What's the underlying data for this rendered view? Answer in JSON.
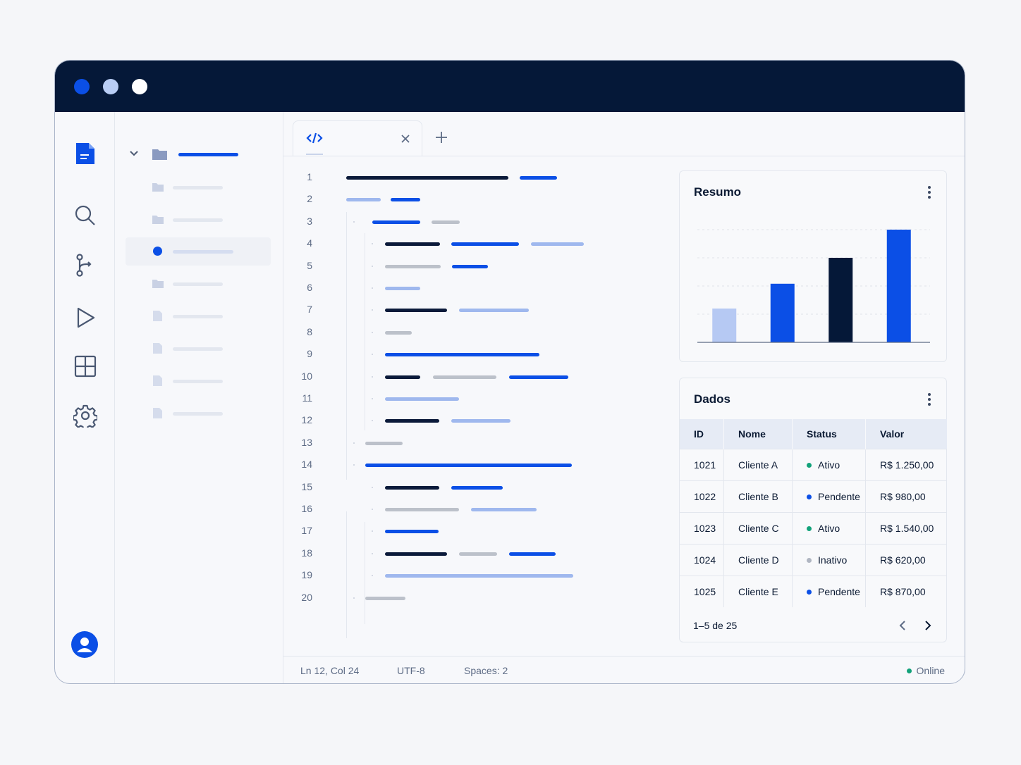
{
  "window": {
    "traffic_lights": [
      "#0b4fe6",
      "#b9cdf5",
      "#ffffff"
    ]
  },
  "activity_bar": {
    "items": [
      "file-icon",
      "search-icon",
      "git-branch-icon",
      "run-icon",
      "extensions-icon",
      "gear-icon"
    ],
    "account": "user-avatar-icon"
  },
  "editor": {
    "tab_icon": "code-icon",
    "line_numbers": [
      "1",
      "2",
      "3",
      "4",
      "5",
      "6",
      "7",
      "8",
      "9",
      "10",
      "11",
      "12",
      "13",
      "14",
      "15",
      "16",
      "17",
      "18",
      "19",
      "20"
    ]
  },
  "summary_card": {
    "title": "Resumo",
    "chart_data": {
      "type": "bar",
      "categories": [
        "",
        "",
        "",
        ""
      ],
      "values": [
        30,
        52,
        75,
        100
      ],
      "colors": [
        "#b6c9f3",
        "#0b4fe6",
        "#051838",
        "#0b4fe6"
      ],
      "ylim": [
        0,
        100
      ],
      "grid": true
    }
  },
  "data_card": {
    "title": "Dados",
    "columns": [
      "ID",
      "Nome",
      "Status",
      "Valor"
    ],
    "rows": [
      {
        "id": "1021",
        "nome": "Cliente A",
        "status": "Ativo",
        "status_color": "#12a27a",
        "valor": "R$ 1.250,00"
      },
      {
        "id": "1022",
        "nome": "Cliente B",
        "status": "Pendente",
        "status_color": "#0b4fe6",
        "valor": "R$ 980,00"
      },
      {
        "id": "1023",
        "nome": "Cliente C",
        "status": "Ativo",
        "status_color": "#12a27a",
        "valor": "R$ 1.540,00"
      },
      {
        "id": "1024",
        "nome": "Cliente D",
        "status": "Inativo",
        "status_color": "#b0b6c2",
        "valor": "R$ 620,00"
      },
      {
        "id": "1025",
        "nome": "Cliente E",
        "status": "Pendente",
        "status_color": "#0b4fe6",
        "valor": "R$ 870,00"
      }
    ],
    "pagination": "1–5 de 25"
  },
  "statusbar": {
    "position": "Ln 12, Col 24",
    "encoding": "UTF-8",
    "spaces": "Spaces: 2",
    "online": "Online",
    "online_color": "#12a27a"
  }
}
